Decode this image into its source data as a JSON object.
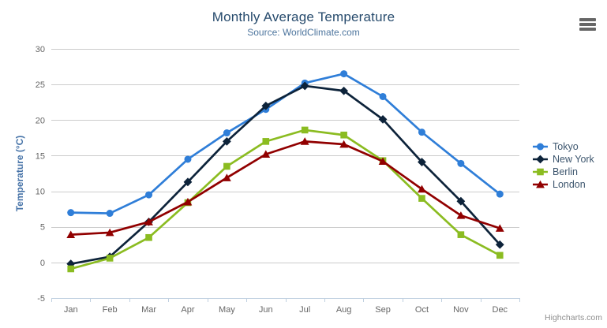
{
  "credits": "Highcharts.com",
  "chart_data": {
    "type": "line",
    "title": "Monthly Average Temperature",
    "subtitle": "Source: WorldClimate.com",
    "xlabel": "",
    "ylabel": "Temperature (°C)",
    "ylim": [
      -5,
      30
    ],
    "ytick_interval": 5,
    "grid": true,
    "legend_position": "right",
    "categories": [
      "Jan",
      "Feb",
      "Mar",
      "Apr",
      "May",
      "Jun",
      "Jul",
      "Aug",
      "Sep",
      "Oct",
      "Nov",
      "Dec"
    ],
    "series": [
      {
        "name": "Tokyo",
        "color": "#2f7ed8",
        "marker": "circle",
        "values": [
          7.0,
          6.9,
          9.5,
          14.5,
          18.2,
          21.5,
          25.2,
          26.5,
          23.3,
          18.3,
          13.9,
          9.6
        ]
      },
      {
        "name": "New York",
        "color": "#0d233a",
        "marker": "diamond",
        "values": [
          -0.2,
          0.8,
          5.7,
          11.3,
          17.0,
          22.0,
          24.8,
          24.1,
          20.1,
          14.1,
          8.6,
          2.5
        ]
      },
      {
        "name": "Berlin",
        "color": "#8bbc21",
        "marker": "square",
        "values": [
          -0.9,
          0.6,
          3.5,
          8.4,
          13.5,
          17.0,
          18.6,
          17.9,
          14.3,
          9.0,
          3.9,
          1.0
        ]
      },
      {
        "name": "London",
        "color": "#910000",
        "marker": "triangle",
        "values": [
          3.9,
          4.2,
          5.7,
          8.5,
          11.9,
          15.2,
          17.0,
          16.6,
          14.2,
          10.3,
          6.6,
          4.8
        ]
      }
    ],
    "axis_colors": {
      "grid": "#cccccc",
      "axis_line": "#c0d0e0",
      "tick_label": "#666666"
    }
  }
}
